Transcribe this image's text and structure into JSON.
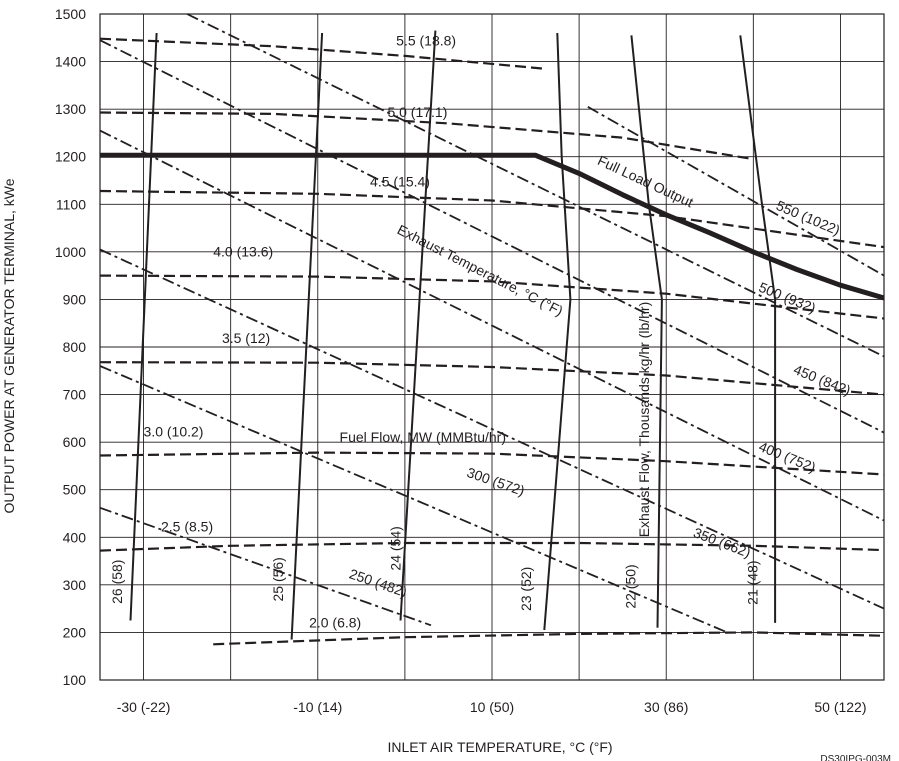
{
  "chart_data": {
    "type": "line",
    "xlabel": "INLET AIR TEMPERATURE, °C (°F)",
    "ylabel": "OUTPUT POWER AT GENERATOR TERMINAL, kWe",
    "xlim": [
      -35,
      55
    ],
    "ylim": [
      100,
      1500
    ],
    "grid": true,
    "x_ticks": [
      -30,
      -20,
      -10,
      0,
      10,
      20,
      30,
      40,
      50
    ],
    "x_tick_labels": [
      "-30 (-22)",
      "",
      "-10 (14)",
      "",
      "10 (50)",
      "",
      "30 (86)",
      "",
      "50 (122)"
    ],
    "y_ticks": [
      100,
      200,
      300,
      400,
      500,
      600,
      700,
      800,
      900,
      1000,
      1100,
      1200,
      1300,
      1400,
      1500
    ],
    "y_tick_labels": [
      "100",
      "200",
      "300",
      "400",
      "500",
      "600",
      "700",
      "800",
      "900",
      "1000",
      "1100",
      "1200",
      "1300",
      "1400",
      "1500"
    ],
    "figure_id": "DS30IPG-003M",
    "family_labels": {
      "fuel_flow": "Fuel Flow, MW (MMBtu/hr)",
      "exhaust_temperature": "Exhaust Temperature, °C (°F)",
      "exhaust_flow": "Exhaust Flow, Thousands kg/hr (lb/hr)",
      "full_load": "Full Load Output"
    },
    "series": [
      {
        "name": "Full Load Output",
        "style": "thick",
        "label": "Full Load Output",
        "x": [
          -35,
          14,
          15,
          20,
          25,
          30,
          35,
          40,
          45,
          50,
          55
        ],
        "y": [
          1203,
          1203,
          1203,
          1165,
          1120,
          1078,
          1040,
          1000,
          963,
          930,
          903
        ]
      },
      {
        "name": "2.0 (6.8)",
        "style": "dashed",
        "label": "2.0 (6.8)",
        "x": [
          -22,
          0,
          20,
          40,
          55
        ],
        "y": [
          175,
          190,
          197,
          200,
          193
        ]
      },
      {
        "name": "2.5 (8.5)",
        "style": "dashed",
        "label": "2.5 (8.5)",
        "x": [
          -35,
          -20,
          0,
          20,
          40,
          55
        ],
        "y": [
          372,
          382,
          388,
          388,
          382,
          373
        ]
      },
      {
        "name": "3.0 (10.2)",
        "style": "dashed",
        "label": "3.0 (10.2)",
        "x": [
          -35,
          -10,
          10,
          30,
          55
        ],
        "y": [
          572,
          578,
          576,
          560,
          532
        ]
      },
      {
        "name": "3.5 (12)",
        "style": "dashed",
        "label": "3.5 (12)",
        "x": [
          -35,
          -10,
          10,
          30,
          55
        ],
        "y": [
          768,
          767,
          758,
          740,
          700
        ]
      },
      {
        "name": "4.0 (13.6)",
        "style": "dashed",
        "label": "4.0 (13.6)",
        "x": [
          -35,
          -10,
          10,
          30,
          55
        ],
        "y": [
          950,
          948,
          938,
          912,
          860
        ]
      },
      {
        "name": "4.5 (15.4)",
        "style": "dashed",
        "label": "4.5 (15.4)",
        "x": [
          -35,
          -10,
          10,
          30,
          55
        ],
        "y": [
          1128,
          1122,
          1108,
          1075,
          1010
        ]
      },
      {
        "name": "5.0 (17.1)",
        "style": "dashed",
        "label": "5.0 (17.1)",
        "x": [
          -35,
          -15,
          5,
          25,
          40
        ],
        "y": [
          1293,
          1290,
          1270,
          1240,
          1195
        ]
      },
      {
        "name": "5.5 (18.8)",
        "style": "dashed",
        "label": "5.5 (18.8)",
        "x": [
          -35,
          -15,
          0,
          16
        ],
        "y": [
          1448,
          1432,
          1412,
          1385
        ]
      },
      {
        "name": "250 (482)",
        "style": "dashdot",
        "label": "250 (482)",
        "x": [
          -35,
          3
        ],
        "y": [
          462,
          215
        ]
      },
      {
        "name": "300 (572)",
        "style": "dashdot",
        "label": "300 (572)",
        "x": [
          -35,
          37
        ],
        "y": [
          760,
          200
        ]
      },
      {
        "name": "350 (662)",
        "style": "dashdot",
        "label": "350 (662)",
        "x": [
          -35,
          55
        ],
        "y": [
          1005,
          250
        ]
      },
      {
        "name": "400 (752)",
        "style": "dashdot",
        "label": "400 (752)",
        "x": [
          -35,
          55
        ],
        "y": [
          1255,
          435
        ]
      },
      {
        "name": "450 (842)",
        "style": "dashdot",
        "label": "450 (842)",
        "x": [
          -35,
          55
        ],
        "y": [
          1445,
          620
        ]
      },
      {
        "name": "500 (932)",
        "style": "dashdot",
        "label": "500 (932)",
        "x": [
          -25,
          55
        ],
        "y": [
          1500,
          780
        ]
      },
      {
        "name": "550 (1022)",
        "style": "dashdot",
        "label": "550 (1022)",
        "x": [
          21,
          55
        ],
        "y": [
          1305,
          950
        ]
      },
      {
        "name": "26 (58)",
        "style": "solid",
        "label": "26 (58)",
        "x": [
          -31.5,
          -28.5
        ],
        "y": [
          225,
          1460
        ]
      },
      {
        "name": "25 (56)",
        "style": "solid",
        "label": "25 (56)",
        "x": [
          -13,
          -9.5
        ],
        "y": [
          185,
          1460
        ]
      },
      {
        "name": "24 (54)",
        "style": "solid",
        "label": "24 (54)",
        "x": [
          -0.5,
          3.5
        ],
        "y": [
          225,
          1465
        ]
      },
      {
        "name": "23 (52)",
        "style": "solid",
        "label": "23 (52)",
        "x": [
          16,
          19,
          18,
          17.5
        ],
        "y": [
          205,
          900,
          1200,
          1460
        ]
      },
      {
        "name": "22 (50)",
        "style": "solid",
        "label": "22 (50)",
        "x": [
          29,
          29.5,
          28,
          26
        ],
        "y": [
          210,
          900,
          1100,
          1455
        ]
      },
      {
        "name": "21 (48)",
        "style": "solid",
        "label": "21 (48)",
        "x": [
          42.5,
          42.5,
          41,
          38.5
        ],
        "y": [
          220,
          900,
          1100,
          1455
        ]
      }
    ]
  }
}
